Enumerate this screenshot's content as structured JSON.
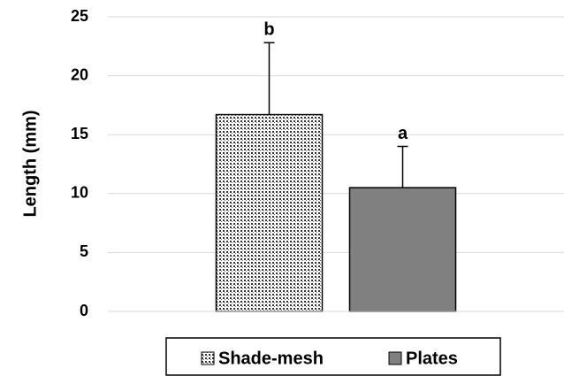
{
  "chart_data": {
    "type": "bar",
    "y_label": "Length (mm)",
    "categories": [
      null
    ],
    "series": [
      {
        "name": "Shade-mesh",
        "color": "#333333",
        "fill_pattern": "dots",
        "values": [
          16.7
        ],
        "errors": [
          6.1
        ],
        "annotations": [
          "b"
        ]
      },
      {
        "name": "Plates",
        "color": "#808080",
        "values": [
          10.5
        ],
        "errors": [
          3.5
        ],
        "annotations": [
          "a"
        ]
      }
    ],
    "ylim": [
      0,
      25
    ],
    "yticks": [
      0,
      5,
      10,
      15,
      20,
      25
    ],
    "grid": true,
    "legend": "bottom"
  }
}
